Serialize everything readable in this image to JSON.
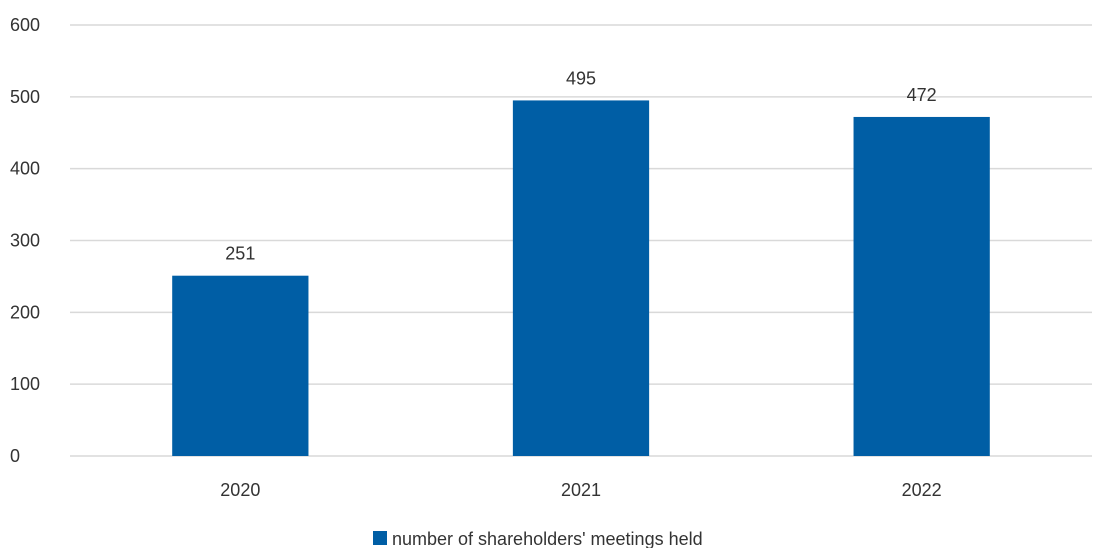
{
  "chart_data": {
    "type": "bar",
    "categories": [
      "2020",
      "2021",
      "2022"
    ],
    "series": [
      {
        "name": "number of shareholders' meetings held",
        "values": [
          251,
          495,
          472
        ],
        "color": "#005ea5"
      }
    ],
    "yticks": [
      "0",
      "100",
      "200",
      "300",
      "400",
      "500",
      "600"
    ],
    "ylim": [
      0,
      600
    ],
    "data_labels": [
      "251",
      "495",
      "472"
    ],
    "title": "",
    "xlabel": "",
    "ylabel": "",
    "grid": true,
    "grid_color": "#d9d9d9",
    "legend": {
      "placement": "bottom",
      "marker": "square",
      "label": "number of shareholders' meetings held"
    }
  }
}
